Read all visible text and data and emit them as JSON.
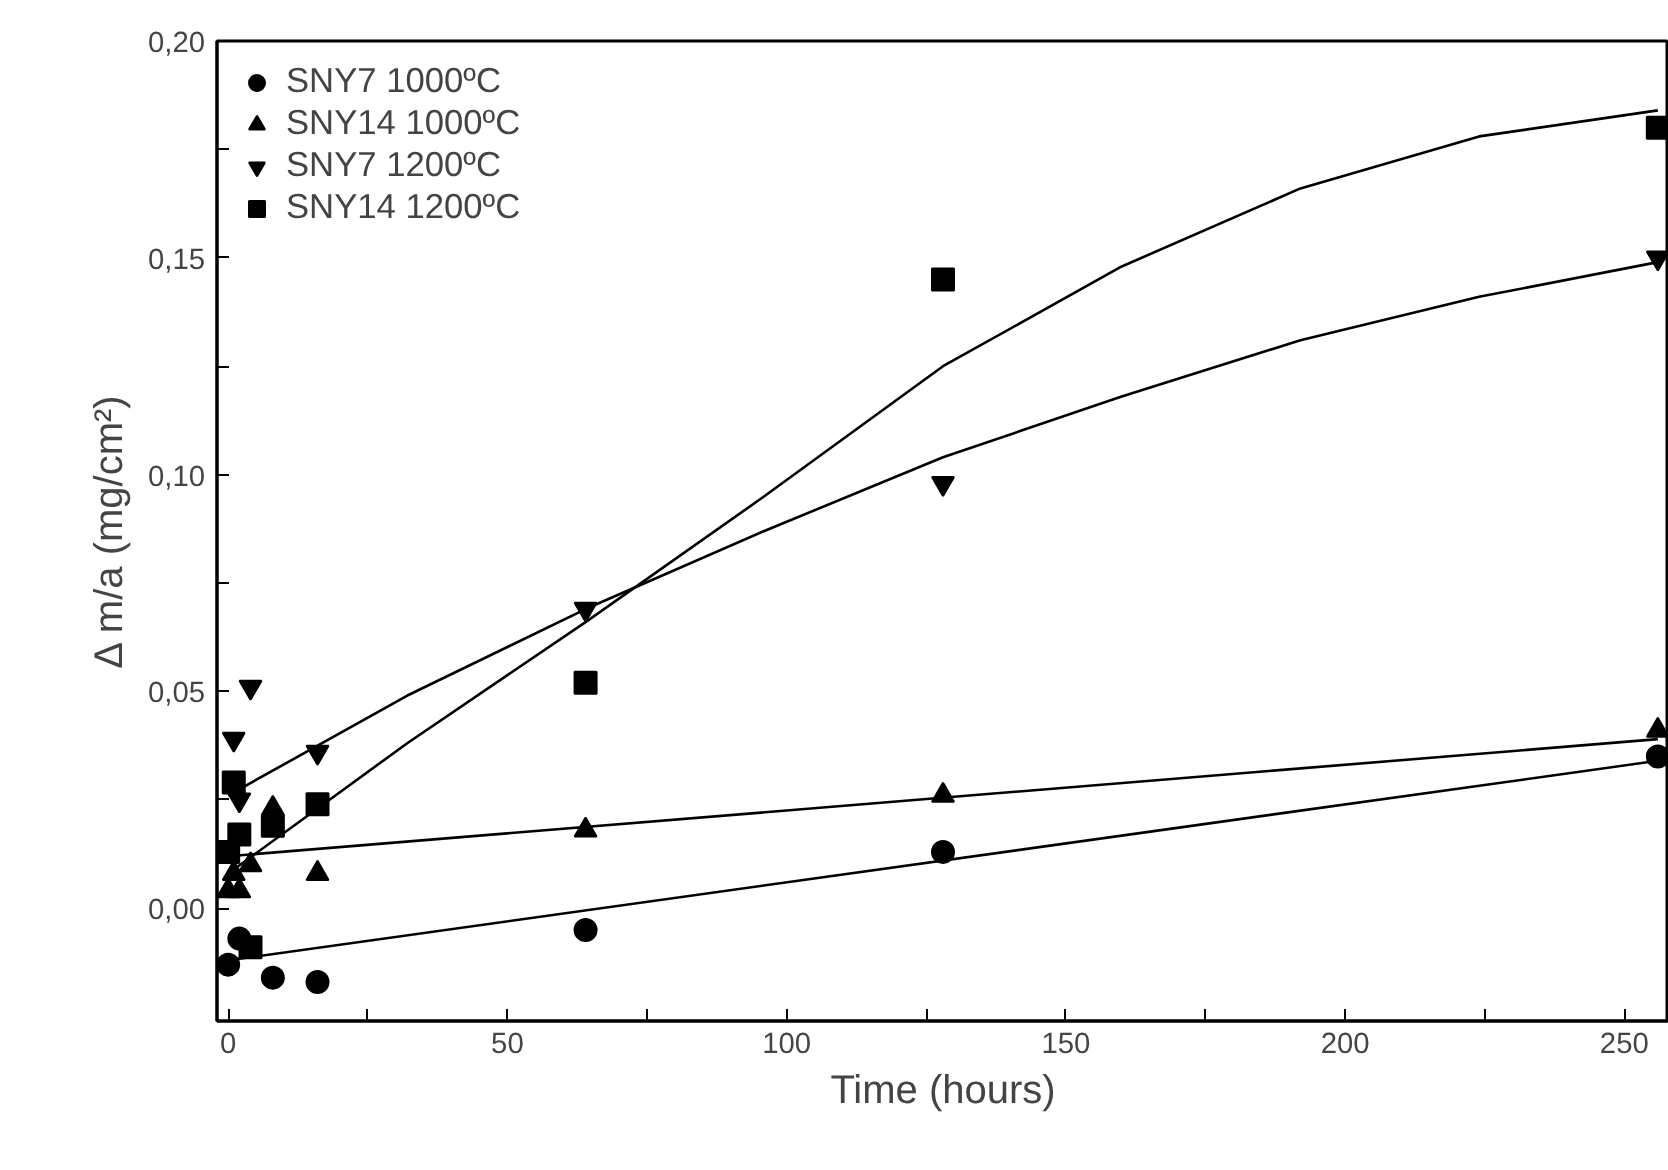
{
  "chart_data": {
    "type": "scatter",
    "xlabel": "Time (hours)",
    "ylabel": "Δ m/a (mg/cm²)",
    "xlim": [
      -2,
      258
    ],
    "ylim": [
      -0.026,
      0.2
    ],
    "xticks": [
      0,
      {
        "value": 25,
        "label": null
      },
      50,
      {
        "value": 75,
        "label": null
      },
      100,
      {
        "value": 125,
        "label": null
      },
      150,
      {
        "value": 175,
        "label": null
      },
      200,
      {
        "value": 225,
        "label": null
      },
      250
    ],
    "yticks": [
      {
        "value": 0,
        "label": "0,00"
      },
      {
        "value": 0.025,
        "label": null
      },
      {
        "value": 0.05,
        "label": "0,05"
      },
      {
        "value": 0.075,
        "label": null
      },
      {
        "value": 0.1,
        "label": "0,10"
      },
      {
        "value": 0.125,
        "label": null
      },
      {
        "value": 0.15,
        "label": "0,15"
      },
      {
        "value": 0.175,
        "label": null
      },
      {
        "value": 0.2,
        "label": "0,20"
      }
    ],
    "grid": false,
    "legend": "top left",
    "series": [
      {
        "name": "SNY7 1000ºC",
        "color": "#000000",
        "marker": "circle",
        "x": [
          0,
          2,
          8,
          16,
          64,
          128,
          256
        ],
        "values": [
          -0.013,
          -0.007,
          -0.016,
          -0.017,
          -0.005,
          0.013,
          0.035
        ]
      },
      {
        "name": "SNY14 1000ºC",
        "color": "#000000",
        "marker": "triangle",
        "x": [
          0,
          1,
          2,
          4,
          8,
          16,
          64,
          128,
          256
        ],
        "values": [
          0.004,
          0.008,
          0.004,
          0.01,
          0.023,
          0.008,
          0.018,
          0.026,
          0.041
        ]
      },
      {
        "name": "SNY7 1200ºC",
        "color": "#000000",
        "marker": "triangle-down",
        "x": [
          1,
          2,
          4,
          16,
          64,
          128,
          256
        ],
        "values": [
          0.039,
          0.025,
          0.051,
          0.036,
          0.069,
          0.098,
          0.15
        ]
      },
      {
        "name": "SNY14 1200ºC",
        "color": "#000000",
        "marker": "square",
        "x": [
          0,
          1,
          2,
          4,
          8,
          16,
          64,
          128,
          256
        ],
        "values": [
          0.013,
          0.029,
          0.017,
          -0.009,
          0.019,
          0.024,
          0.052,
          0.145,
          0.18
        ]
      },
      {
        "type": "line",
        "color": "#000000",
        "marker": "none",
        "x": [
          0,
          256
        ],
        "values": [
          -0.012,
          0.034
        ]
      },
      {
        "type": "line",
        "color": "#000000",
        "marker": "none",
        "x": [
          0,
          256
        ],
        "values": [
          0.012,
          0.039
        ]
      },
      {
        "type": "line",
        "color": "#000000",
        "marker": "none",
        "x": [
          0,
          32,
          64,
          96,
          128,
          160,
          192,
          224,
          256
        ],
        "values": [
          0.026,
          0.049,
          0.069,
          0.087,
          0.104,
          0.118,
          0.131,
          0.141,
          0.149
        ]
      },
      {
        "type": "line",
        "color": "#000000",
        "marker": "none",
        "x": [
          0,
          32,
          64,
          96,
          128,
          160,
          192,
          224,
          256
        ],
        "values": [
          0.008,
          0.038,
          0.066,
          0.095,
          0.125,
          0.148,
          0.166,
          0.178,
          0.184
        ]
      }
    ]
  }
}
